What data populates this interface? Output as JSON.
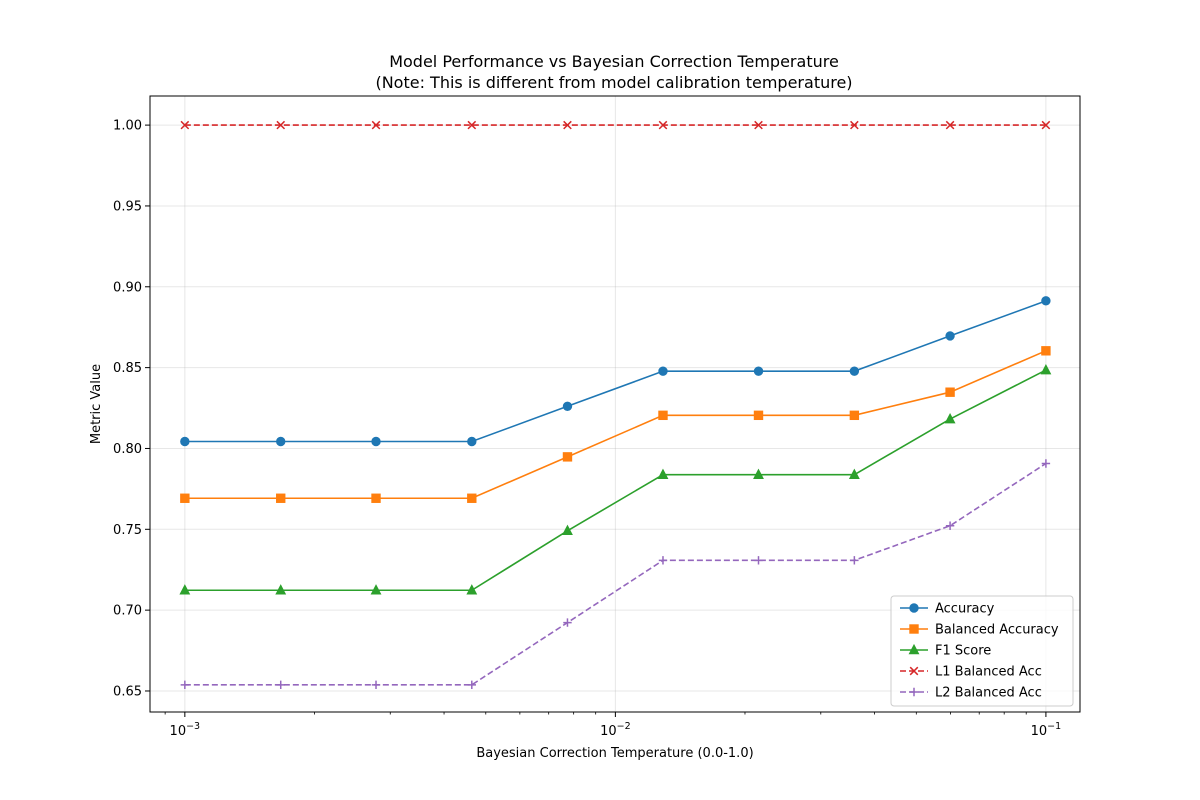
{
  "chart_data": {
    "type": "line",
    "title": "Model Performance vs Bayesian Correction Temperature",
    "subtitle": "(Note: This is different from model calibration temperature)",
    "xlabel": "Bayesian Correction Temperature (0.0-1.0)",
    "ylabel": "Metric Value",
    "x_scale": "log",
    "xlim": [
      0.00083,
      0.12
    ],
    "ylim": [
      0.637,
      1.018
    ],
    "x_ticks": [
      {
        "value": 0.001,
        "base": "10",
        "exp": "−3"
      },
      {
        "value": 0.01,
        "base": "10",
        "exp": "−2"
      },
      {
        "value": 0.1,
        "base": "10",
        "exp": "−1"
      }
    ],
    "y_ticks": [
      {
        "value": 0.65,
        "label": "0.65"
      },
      {
        "value": 0.7,
        "label": "0.70"
      },
      {
        "value": 0.75,
        "label": "0.75"
      },
      {
        "value": 0.8,
        "label": "0.80"
      },
      {
        "value": 0.85,
        "label": "0.85"
      },
      {
        "value": 0.9,
        "label": "0.90"
      },
      {
        "value": 0.95,
        "label": "0.95"
      },
      {
        "value": 1.0,
        "label": "1.00"
      }
    ],
    "grid": true,
    "legend_position": "lower-right",
    "x": [
      0.001,
      0.00167,
      0.00278,
      0.00464,
      0.00774,
      0.0129,
      0.0215,
      0.0359,
      0.0599,
      0.1
    ],
    "series": [
      {
        "name": "Accuracy",
        "color": "#1f77b4",
        "marker": "circle",
        "dashed": false,
        "values": [
          0.8043,
          0.8043,
          0.8043,
          0.8043,
          0.8261,
          0.8478,
          0.8478,
          0.8478,
          0.8696,
          0.8913
        ]
      },
      {
        "name": "Balanced Accuracy",
        "color": "#ff7f0e",
        "marker": "square",
        "dashed": false,
        "values": [
          0.7692,
          0.7692,
          0.7692,
          0.7692,
          0.7948,
          0.8205,
          0.8205,
          0.8205,
          0.8348,
          0.8604
        ]
      },
      {
        "name": "F1 Score",
        "color": "#2ca02c",
        "marker": "triangle",
        "dashed": false,
        "values": [
          0.7123,
          0.7123,
          0.7123,
          0.7123,
          0.7491,
          0.7838,
          0.7838,
          0.7838,
          0.8182,
          0.8485
        ]
      },
      {
        "name": "L1 Balanced Acc",
        "color": "#d62728",
        "marker": "x",
        "dashed": true,
        "values": [
          1.0,
          1.0,
          1.0,
          1.0,
          1.0,
          1.0,
          1.0,
          1.0,
          1.0,
          1.0
        ]
      },
      {
        "name": "L2 Balanced Acc",
        "color": "#9467bd",
        "marker": "plus",
        "dashed": true,
        "values": [
          0.6538,
          0.6538,
          0.6538,
          0.6538,
          0.6923,
          0.7308,
          0.7308,
          0.7308,
          0.7522,
          0.7907
        ]
      }
    ]
  }
}
